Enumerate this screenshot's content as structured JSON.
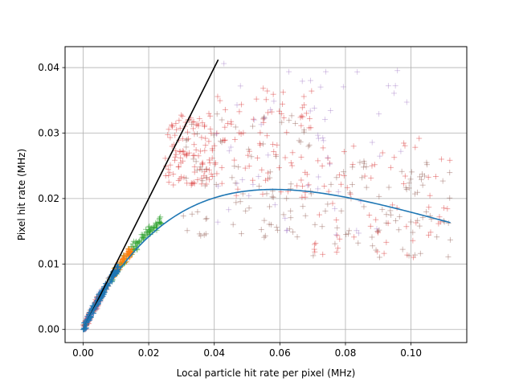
{
  "chart_data": {
    "type": "scatter",
    "xlabel": "Local particle hit rate per pixel (MHz)",
    "ylabel": "Pixel hit rate (MHz)",
    "xlim": [
      -0.0055,
      0.117
    ],
    "ylim": [
      -0.002,
      0.0432
    ],
    "xticks": [
      0.0,
      0.02,
      0.04,
      0.06,
      0.08,
      0.1
    ],
    "yticks": [
      0.0,
      0.01,
      0.02,
      0.03,
      0.04
    ],
    "xtick_labels": [
      "0.00",
      "0.02",
      "0.04",
      "0.06",
      "0.08",
      "0.10"
    ],
    "ytick_labels": [
      "0.00",
      "0.01",
      "0.02",
      "0.03",
      "0.04"
    ],
    "grid": true,
    "legend": "none",
    "scatter_series": [
      {
        "color": "#d62728",
        "marker": "plus",
        "alpha": 0.4,
        "clusters": [
          {
            "x": [
              0.0,
              0.006
            ],
            "y_rel": [
              0.0,
              1.0
            ],
            "n": 90
          },
          {
            "x": [
              0.025,
              0.04
            ],
            "y": [
              0.022,
              0.033
            ],
            "n": 110
          },
          {
            "x": [
              0.04,
              0.07
            ],
            "y": [
              0.02,
              0.037
            ],
            "n": 90
          },
          {
            "x": [
              0.07,
              0.112
            ],
            "y": [
              0.011,
              0.03
            ],
            "n": 70
          }
        ]
      },
      {
        "color": "#8c564b",
        "marker": "plus",
        "alpha": 0.4,
        "clusters": [
          {
            "x": [
              0.0,
              0.008
            ],
            "y_rel": [
              0.0,
              1.0
            ],
            "n": 70
          },
          {
            "x": [
              0.03,
              0.07
            ],
            "y": [
              0.014,
              0.033
            ],
            "n": 90
          },
          {
            "x": [
              0.07,
              0.112
            ],
            "y": [
              0.011,
              0.027
            ],
            "n": 80
          }
        ]
      },
      {
        "color": "#9467bd",
        "marker": "plus",
        "alpha": 0.35,
        "clusters": [
          {
            "x": [
              0.0,
              0.006
            ],
            "y_rel": [
              0.0,
              1.0
            ],
            "n": 50
          },
          {
            "x": [
              0.04,
              0.1
            ],
            "y": [
              0.014,
              0.041
            ],
            "n": 60
          }
        ]
      },
      {
        "color": "#2ca02c",
        "marker": "plus",
        "alpha": 0.55,
        "clusters": [
          {
            "x": [
              0.008,
              0.024
            ],
            "y_rel": [
              0.0,
              1.0
            ],
            "n": 120
          }
        ]
      },
      {
        "color": "#ff7f0e",
        "marker": "plus",
        "alpha": 0.7,
        "clusters": [
          {
            "x": [
              0.009,
              0.015
            ],
            "y_rel": [
              0.0,
              1.0
            ],
            "n": 70
          }
        ]
      },
      {
        "color": "#1f77b4",
        "marker": "plus",
        "alpha": 0.8,
        "clusters": [
          {
            "x": [
              0.0,
              0.011
            ],
            "y_rel": [
              0.0,
              1.0
            ],
            "n": 160
          }
        ]
      }
    ],
    "lines": [
      {
        "name": "",
        "color": "#000000",
        "x": [
          0.0,
          0.0412
        ],
        "y": [
          0.0,
          0.0412
        ]
      },
      {
        "name": "",
        "color": "#1f77b4",
        "x": [
          0.0,
          0.112
        ],
        "y": [
          0.0,
          0.0219
        ],
        "model": "paralyzable",
        "tau": 17.2
      }
    ]
  }
}
